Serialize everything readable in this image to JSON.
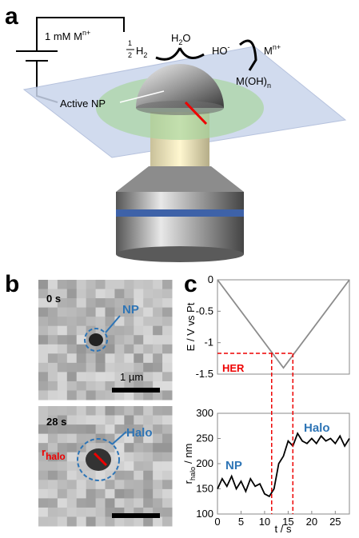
{
  "panel_labels": [
    "a",
    "b",
    "c"
  ],
  "diagram": {
    "concentration": {
      "text": "1 mM M",
      "sup": "n+"
    },
    "half": {
      "num": "1",
      "den": "2"
    },
    "h2": {
      "text": "H",
      "sub": "2"
    },
    "water": {
      "text": "H",
      "sub": "2",
      "rest": "O"
    },
    "hydroxide": {
      "text": "HO",
      "sup": "-"
    },
    "metal_ion": {
      "text": "M",
      "sup": "n+"
    },
    "hydroxide_product": {
      "text": "M(OH)",
      "sub": "n"
    },
    "active_np": "Active NP"
  },
  "images": [
    {
      "time": "0 s",
      "label": "NP",
      "scale": "1 µm"
    },
    {
      "time": "28 s",
      "radius_label": {
        "text": "r",
        "sub": "halo"
      },
      "label": "Halo"
    }
  ],
  "chart_data": [
    {
      "type": "line",
      "ylabel": "E / V vs Pt",
      "x": [
        0,
        14,
        28
      ],
      "values": [
        0,
        -1.4,
        0
      ],
      "color": "#8c8c8c",
      "xlim": [
        0,
        28
      ],
      "ylim": [
        -1.5,
        0
      ],
      "yticks": [
        -1.5,
        -1,
        -0.5,
        0
      ],
      "annotation": "HER",
      "annotation_level": -1.17,
      "annotation_t": [
        11.5,
        16
      ]
    },
    {
      "type": "line",
      "ylabel": {
        "text": "r",
        "sub": "halo",
        "rest": "/ nm"
      },
      "xlabel": "t / s",
      "x": [
        0,
        1,
        2,
        3,
        4,
        5,
        6,
        7,
        8,
        9,
        10,
        11,
        12,
        13,
        14,
        15,
        16,
        17,
        18,
        19,
        20,
        21,
        22,
        23,
        24,
        25,
        26,
        27,
        28
      ],
      "values": [
        150,
        170,
        155,
        175,
        150,
        165,
        145,
        170,
        155,
        160,
        140,
        135,
        150,
        200,
        215,
        245,
        235,
        260,
        245,
        240,
        250,
        240,
        255,
        245,
        250,
        240,
        255,
        235,
        250
      ],
      "color": "#000000",
      "xlim": [
        0,
        28
      ],
      "ylim": [
        100,
        300
      ],
      "xticks": [
        0,
        5,
        10,
        15,
        20,
        25
      ],
      "yticks": [
        100,
        150,
        200,
        250,
        300
      ],
      "annotations": [
        "NP",
        "Halo"
      ]
    }
  ]
}
